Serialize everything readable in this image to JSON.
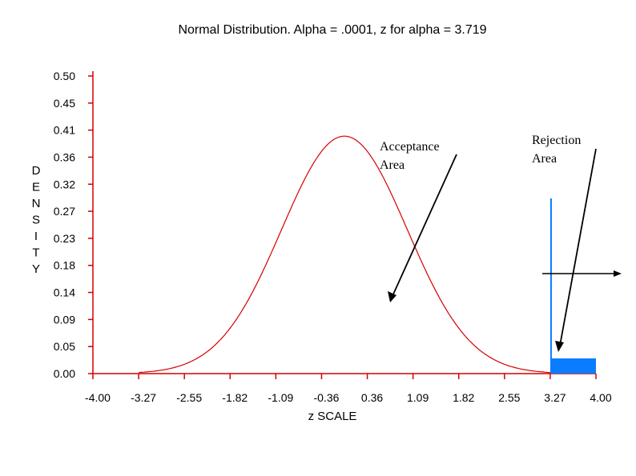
{
  "chart_data": {
    "type": "area",
    "title": "Normal Distribution. Alpha = .0001, z for alpha = 3.719",
    "xlabel": "z SCALE",
    "ylabel_letters": [
      "D",
      "E",
      "N",
      "S",
      "I",
      "T",
      "Y"
    ],
    "xlim": [
      -4.0,
      4.0
    ],
    "ylim": [
      0.0,
      0.5
    ],
    "x_ticks": [
      "-4.00",
      "-3.27",
      "-2.55",
      "-1.82",
      "-1.09",
      "-0.36",
      "0.36",
      "1.09",
      "1.82",
      "2.55",
      "3.27",
      "4.00"
    ],
    "y_ticks": [
      "0.50",
      "0.45",
      "0.41",
      "0.36",
      "0.32",
      "0.27",
      "0.23",
      "0.18",
      "0.14",
      "0.09",
      "0.05",
      "0.00"
    ],
    "series": [
      {
        "values": {
          "x": [
            -3.2,
            -2.8,
            -2.4,
            -2.0,
            -1.6,
            -1.2,
            -0.8,
            -0.4,
            0.0,
            0.4,
            0.8,
            1.2,
            1.6,
            2.0,
            2.4,
            2.8,
            3.2
          ],
          "y": [
            0.002,
            0.008,
            0.022,
            0.054,
            0.111,
            0.194,
            0.29,
            0.368,
            0.399,
            0.368,
            0.29,
            0.194,
            0.111,
            0.054,
            0.022,
            0.008,
            0.002
          ]
        }
      }
    ],
    "critical_z": 3.719,
    "annotations": [
      {
        "text_lines": [
          "Acceptance",
          "Area"
        ]
      },
      {
        "text_lines": [
          "Rejection",
          "Area"
        ]
      }
    ],
    "colors": {
      "axis": "#d40000",
      "curve": "#d40000",
      "rejection": "#0a7cff"
    }
  }
}
